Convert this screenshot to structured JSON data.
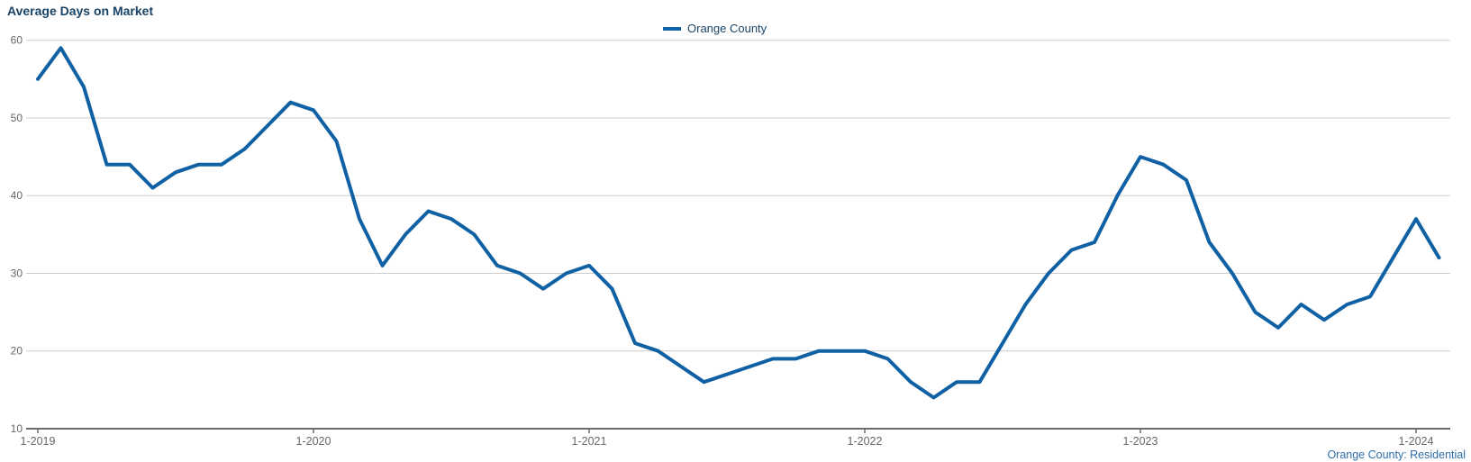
{
  "title": "Average Days on Market",
  "footer": {
    "text": "Orange County: Residential"
  },
  "colors": {
    "line": "#1061A4",
    "title_text": "#1A4365",
    "legend_text": "#1A4365",
    "footer_text": "#2E6DA8",
    "axis_line": "#6B6B6B",
    "tick_text": "#666666",
    "gridline": "#CDCDCD",
    "background": "#FFFFFF"
  },
  "chart_data": {
    "type": "line",
    "title": "Average Days on Market",
    "xlabel": "",
    "ylabel": "",
    "x_interval": "monthly",
    "x_start": "1-2019",
    "x_end": "2-2024",
    "ylim": [
      10,
      60
    ],
    "y_ticks": [
      10,
      20,
      30,
      40,
      50,
      60
    ],
    "x_tick_labels": [
      "1-2019",
      "1-2020",
      "1-2021",
      "1-2022",
      "1-2023",
      "1-2024"
    ],
    "x_tick_indices": [
      0,
      12,
      24,
      36,
      48,
      60
    ],
    "grid": "horizontal-only",
    "legend_position": "top-center",
    "series": [
      {
        "name": "Orange County",
        "color": "#1061A4",
        "values": [
          55,
          59,
          54,
          44,
          44,
          41,
          43,
          44,
          44,
          46,
          49,
          52,
          51,
          47,
          37,
          31,
          35,
          38,
          37,
          35,
          31,
          30,
          28,
          30,
          31,
          28,
          21,
          20,
          18,
          16,
          17,
          18,
          19,
          19,
          20,
          20,
          20,
          19,
          16,
          14,
          16,
          16,
          21,
          26,
          30,
          33,
          34,
          40,
          45,
          44,
          42,
          34,
          30,
          25,
          23,
          26,
          24,
          26,
          27,
          32,
          37,
          32
        ]
      }
    ]
  }
}
